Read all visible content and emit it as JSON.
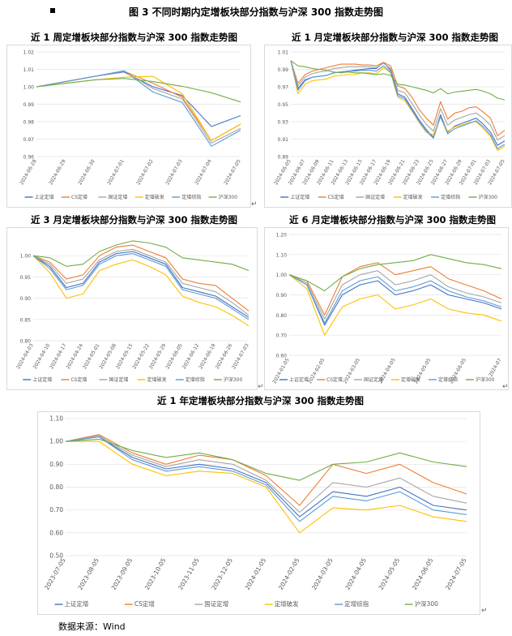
{
  "figure": {
    "title": "图 3 不同时期内定增板块部分指数与沪深 300 指数走势图",
    "source": "数据来源：Wind",
    "series_names": [
      "上证定增",
      "CS定增",
      "国证定增",
      "定增破发",
      "定增综指",
      "沪深300"
    ],
    "series_colors": [
      "#4472C4",
      "#ED7D31",
      "#A5A5A5",
      "#FFC000",
      "#5B9BD5",
      "#70AD47"
    ]
  },
  "chart_data": [
    {
      "type": "line",
      "title": "近 1 周定增板块部分指数与沪深 300 指数走势图",
      "x": [
        "2024-06-28",
        "2024-06-29",
        "2024-06-30",
        "2024-07-01",
        "2024-07-02",
        "2024-07-03",
        "2024-07-04",
        "2024-07-05"
      ],
      "ylim": [
        0.96,
        1.02
      ],
      "yticks": [
        0.96,
        0.97,
        0.98,
        0.99,
        1.0,
        1.01,
        1.02
      ],
      "ydecimals": 2,
      "xlabels": [
        "2024-06-28",
        "2024-06-29",
        "2024-06-30",
        "2024-07-01",
        "2024-07-02",
        "2024-07-03",
        "2024-07-04",
        "2024-07-05"
      ],
      "legend": "bottom",
      "series": [
        {
          "name": "上证定增",
          "values": [
            1.0,
            1.003,
            1.006,
            1.0085,
            1.0,
            0.995,
            0.9772,
            0.9835
          ]
        },
        {
          "name": "CS定增",
          "values": [
            1.0,
            1.003,
            1.006,
            1.009,
            1.002,
            0.994,
            0.9692,
            0.9786
          ]
        },
        {
          "name": "国证定增",
          "values": [
            1.0,
            1.003,
            1.006,
            1.009,
            0.999,
            0.993,
            0.9677,
            0.9762
          ]
        },
        {
          "name": "定增破发",
          "values": [
            1.0,
            1.002,
            1.004,
            1.0055,
            1.006,
            0.996,
            0.9691,
            0.9785
          ]
        },
        {
          "name": "定增综指",
          "values": [
            1.0,
            1.003,
            1.006,
            1.0092,
            0.997,
            0.991,
            0.9659,
            0.9751
          ]
        },
        {
          "name": "沪深300",
          "values": [
            1.0,
            1.002,
            1.004,
            1.0048,
            1.003,
            1.0003,
            0.9966,
            0.9913
          ]
        }
      ]
    },
    {
      "type": "line",
      "title": "近 1 月定增板块部分指数与沪深 300 指数走势图",
      "x": [
        "2024-06-05",
        "2024-06-06",
        "2024-06-07",
        "2024-06-08",
        "2024-06-09",
        "2024-06-10",
        "2024-06-11",
        "2024-06-12",
        "2024-06-13",
        "2024-06-14",
        "2024-06-15",
        "2024-06-16",
        "2024-06-17",
        "2024-06-18",
        "2024-06-19",
        "2024-06-20",
        "2024-06-21",
        "2024-06-22",
        "2024-06-23",
        "2024-06-24",
        "2024-06-25",
        "2024-06-26",
        "2024-06-27",
        "2024-06-28",
        "2024-06-29",
        "2024-06-30",
        "2024-07-01",
        "2024-07-02",
        "2024-07-03",
        "2024-07-04",
        "2024-07-05"
      ],
      "ylim": [
        0.89,
        1.01
      ],
      "yticks": [
        0.89,
        0.91,
        0.93,
        0.95,
        0.97,
        0.99,
        1.01
      ],
      "ydecimals": 2,
      "xlabels": [
        "2024-06-05",
        "2024-06-07",
        "2024-06-09",
        "2024-06-11",
        "2024-06-13",
        "2024-06-15",
        "2024-06-17",
        "2024-06-19",
        "2024-06-21",
        "2024-06-23",
        "2024-06-25",
        "2024-06-27",
        "2024-06-29",
        "2024-07-01",
        "2024-07-03",
        "2024-07-05"
      ],
      "legend": "bottom",
      "series": [
        {
          "name": "上证定增",
          "values": [
            1.0,
            0.968,
            0.978,
            0.981,
            0.982,
            0.983,
            0.986,
            0.987,
            0.988,
            0.989,
            0.99,
            0.991,
            0.991,
            0.998,
            0.989,
            0.962,
            0.958,
            0.945,
            0.932,
            0.921,
            0.912,
            0.938,
            0.918,
            0.925,
            0.928,
            0.931,
            0.934,
            0.927,
            0.918,
            0.903,
            0.908
          ]
        },
        {
          "name": "CS定增",
          "values": [
            1.0,
            0.974,
            0.984,
            0.988,
            0.99,
            0.992,
            0.994,
            0.996,
            0.996,
            0.996,
            0.995,
            0.995,
            0.994,
            0.998,
            0.994,
            0.971,
            0.968,
            0.958,
            0.944,
            0.934,
            0.926,
            0.953,
            0.933,
            0.94,
            0.942,
            0.946,
            0.947,
            0.941,
            0.934,
            0.914,
            0.92
          ]
        },
        {
          "name": "国证定增",
          "values": [
            1.0,
            0.971,
            0.981,
            0.985,
            0.987,
            0.988,
            0.991,
            0.992,
            0.993,
            0.993,
            0.993,
            0.993,
            0.992,
            0.997,
            0.991,
            0.966,
            0.963,
            0.951,
            0.938,
            0.927,
            0.919,
            0.945,
            0.926,
            0.932,
            0.935,
            0.938,
            0.94,
            0.934,
            0.926,
            0.909,
            0.914
          ]
        },
        {
          "name": "定增破发",
          "values": [
            1.0,
            0.962,
            0.973,
            0.977,
            0.978,
            0.979,
            0.982,
            0.983,
            0.984,
            0.984,
            0.986,
            0.986,
            0.985,
            0.992,
            0.986,
            0.958,
            0.954,
            0.942,
            0.929,
            0.918,
            0.915,
            0.935,
            0.919,
            0.924,
            0.926,
            0.929,
            0.93,
            0.922,
            0.913,
            0.897,
            0.902
          ]
        },
        {
          "name": "定增综指",
          "values": [
            1.0,
            0.966,
            0.977,
            0.981,
            0.982,
            0.983,
            0.986,
            0.987,
            0.988,
            0.988,
            0.989,
            0.989,
            0.988,
            0.994,
            0.987,
            0.96,
            0.956,
            0.943,
            0.93,
            0.919,
            0.911,
            0.936,
            0.916,
            0.922,
            0.925,
            0.928,
            0.931,
            0.924,
            0.915,
            0.899,
            0.904
          ]
        },
        {
          "name": "沪深300",
          "values": [
            1.0,
            0.994,
            0.993,
            0.991,
            0.99,
            0.989,
            0.987,
            0.986,
            0.987,
            0.986,
            0.986,
            0.985,
            0.984,
            0.985,
            0.983,
            0.973,
            0.972,
            0.97,
            0.968,
            0.966,
            0.963,
            0.968,
            0.962,
            0.964,
            0.965,
            0.966,
            0.967,
            0.965,
            0.962,
            0.957,
            0.955
          ]
        }
      ]
    },
    {
      "type": "line",
      "title": "近 3 月定增板块部分指数与沪深 300 指数走势图",
      "x": [
        "2024-04-03",
        "2024-04-10",
        "2024-04-17",
        "2024-04-24",
        "2024-05-01",
        "2024-05-08",
        "2024-05-15",
        "2024-05-22",
        "2024-05-29",
        "2024-06-05",
        "2024-06-12",
        "2024-06-19",
        "2024-06-26",
        "2024-07-03"
      ],
      "ylim": [
        0.8,
        1.05
      ],
      "yticks": [
        0.8,
        0.85,
        0.9,
        0.95,
        1.0
      ],
      "ydecimals": 2,
      "xlabels": [
        "2024-04-03",
        "2024-04-10",
        "2024-04-17",
        "2024-04-24",
        "2024-05-01",
        "2024-05-08",
        "2024-05-15",
        "2024-05-22",
        "2024-05-29",
        "2024-06-05",
        "2024-06-12",
        "2024-06-19",
        "2024-06-26",
        "2024-07-03"
      ],
      "legend": "bottom",
      "series": [
        {
          "name": "上证定增",
          "values": [
            1.0,
            0.975,
            0.925,
            0.935,
            0.985,
            1.005,
            1.01,
            0.995,
            0.98,
            0.925,
            0.915,
            0.905,
            0.88,
            0.855
          ]
        },
        {
          "name": "CS定增",
          "values": [
            1.0,
            0.985,
            0.945,
            0.955,
            1.0,
            1.02,
            1.025,
            1.01,
            0.995,
            0.945,
            0.935,
            0.93,
            0.9,
            0.87
          ]
        },
        {
          "name": "国证定增",
          "values": [
            1.0,
            0.98,
            0.935,
            0.945,
            0.99,
            1.01,
            1.015,
            1.0,
            0.985,
            0.935,
            0.925,
            0.915,
            0.89,
            0.86
          ]
        },
        {
          "name": "定增破发",
          "values": [
            1.0,
            0.96,
            0.9,
            0.91,
            0.965,
            0.98,
            0.99,
            0.975,
            0.955,
            0.905,
            0.89,
            0.88,
            0.86,
            0.835
          ]
        },
        {
          "name": "定增综指",
          "values": [
            1.0,
            0.97,
            0.92,
            0.93,
            0.98,
            1.0,
            1.005,
            0.99,
            0.975,
            0.92,
            0.91,
            0.9,
            0.875,
            0.85
          ]
        },
        {
          "name": "沪深300",
          "values": [
            1.0,
            0.995,
            0.975,
            0.98,
            1.01,
            1.025,
            1.035,
            1.03,
            1.02,
            0.995,
            0.99,
            0.985,
            0.98,
            0.965
          ]
        }
      ]
    },
    {
      "type": "line",
      "title": "近 6 月定增板块部分指数与沪深 300 指数走势图",
      "x": [
        "2024-01-05",
        "2024-01-20",
        "2024-02-05",
        "2024-02-20",
        "2024-03-05",
        "2024-03-20",
        "2024-04-05",
        "2024-04-20",
        "2024-05-05",
        "2024-05-20",
        "2024-06-05",
        "2024-06-20",
        "2024-07-05"
      ],
      "ylim": [
        0.6,
        1.2
      ],
      "yticks": [
        0.6,
        0.7,
        0.8,
        0.9,
        1.0,
        1.1,
        1.2
      ],
      "ydecimals": 2,
      "xlabels": [
        "2024-01-05",
        "2024-02-05",
        "2024-03-05",
        "2024-04-05",
        "2024-05-05",
        "2024-06-05",
        "2024-07"
      ],
      "legend": "bottom",
      "series": [
        {
          "name": "上证定增",
          "values": [
            1.0,
            0.95,
            0.75,
            0.9,
            0.95,
            0.97,
            0.9,
            0.92,
            0.95,
            0.9,
            0.88,
            0.86,
            0.83
          ]
        },
        {
          "name": "CS定增",
          "values": [
            1.0,
            0.97,
            0.8,
            0.99,
            1.04,
            1.06,
            1.0,
            1.02,
            1.04,
            0.98,
            0.95,
            0.92,
            0.88
          ]
        },
        {
          "name": "国证定增",
          "values": [
            1.0,
            0.96,
            0.78,
            0.95,
            1.0,
            1.02,
            0.95,
            0.97,
            1.0,
            0.94,
            0.91,
            0.89,
            0.86
          ]
        },
        {
          "name": "定增破发",
          "values": [
            1.0,
            0.93,
            0.7,
            0.84,
            0.88,
            0.9,
            0.83,
            0.85,
            0.88,
            0.83,
            0.81,
            0.8,
            0.77
          ]
        },
        {
          "name": "定增综指",
          "values": [
            1.0,
            0.95,
            0.76,
            0.92,
            0.97,
            0.99,
            0.92,
            0.94,
            0.97,
            0.92,
            0.89,
            0.87,
            0.84
          ]
        },
        {
          "name": "沪深300",
          "values": [
            1.0,
            0.97,
            0.92,
            0.99,
            1.03,
            1.05,
            1.06,
            1.07,
            1.1,
            1.08,
            1.06,
            1.05,
            1.03
          ]
        }
      ]
    },
    {
      "type": "line",
      "title": "近 1 年定增板块部分指数与沪深 300 指数走势图",
      "x": [
        "2023-07-05",
        "2023-08-05",
        "2023-09-05",
        "2023-10-05",
        "2023-11-05",
        "2023-12-05",
        "2024-01-05",
        "2024-02-05",
        "2024-03-05",
        "2024-04-05",
        "2024-05-05",
        "2024-06-05",
        "2024-07-05"
      ],
      "ylim": [
        0.5,
        1.1
      ],
      "yticks": [
        0.5,
        0.6,
        0.7,
        0.8,
        0.9,
        1.0,
        1.1
      ],
      "ydecimals": 2,
      "xlabels": [
        "2023-07-05",
        "2023-08-05",
        "2023-09-05",
        "2023-10-05",
        "2023-11-05",
        "2023-12-05",
        "2024-01-05",
        "2024-02-05",
        "2024-03-05",
        "2024-04-05",
        "2024-05-05",
        "2024-06-05",
        "2024-07-05"
      ],
      "legend": "bottom",
      "series": [
        {
          "name": "上证定增",
          "values": [
            1.0,
            1.02,
            0.93,
            0.88,
            0.9,
            0.88,
            0.82,
            0.67,
            0.78,
            0.76,
            0.8,
            0.72,
            0.7
          ]
        },
        {
          "name": "CS定增",
          "values": [
            1.0,
            1.03,
            0.95,
            0.9,
            0.94,
            0.92,
            0.85,
            0.72,
            0.9,
            0.86,
            0.9,
            0.82,
            0.77
          ]
        },
        {
          "name": "国证定增",
          "values": [
            1.0,
            1.025,
            0.94,
            0.89,
            0.92,
            0.9,
            0.83,
            0.69,
            0.82,
            0.8,
            0.84,
            0.76,
            0.73
          ]
        },
        {
          "name": "定增破发",
          "values": [
            1.0,
            1.0,
            0.9,
            0.85,
            0.87,
            0.86,
            0.8,
            0.6,
            0.71,
            0.7,
            0.72,
            0.67,
            0.65
          ]
        },
        {
          "name": "定增综指",
          "values": [
            1.0,
            1.02,
            0.92,
            0.87,
            0.89,
            0.87,
            0.81,
            0.65,
            0.76,
            0.74,
            0.78,
            0.7,
            0.68
          ]
        },
        {
          "name": "沪深300",
          "values": [
            1.0,
            1.01,
            0.96,
            0.93,
            0.95,
            0.92,
            0.86,
            0.83,
            0.9,
            0.91,
            0.95,
            0.91,
            0.89
          ]
        }
      ]
    }
  ]
}
